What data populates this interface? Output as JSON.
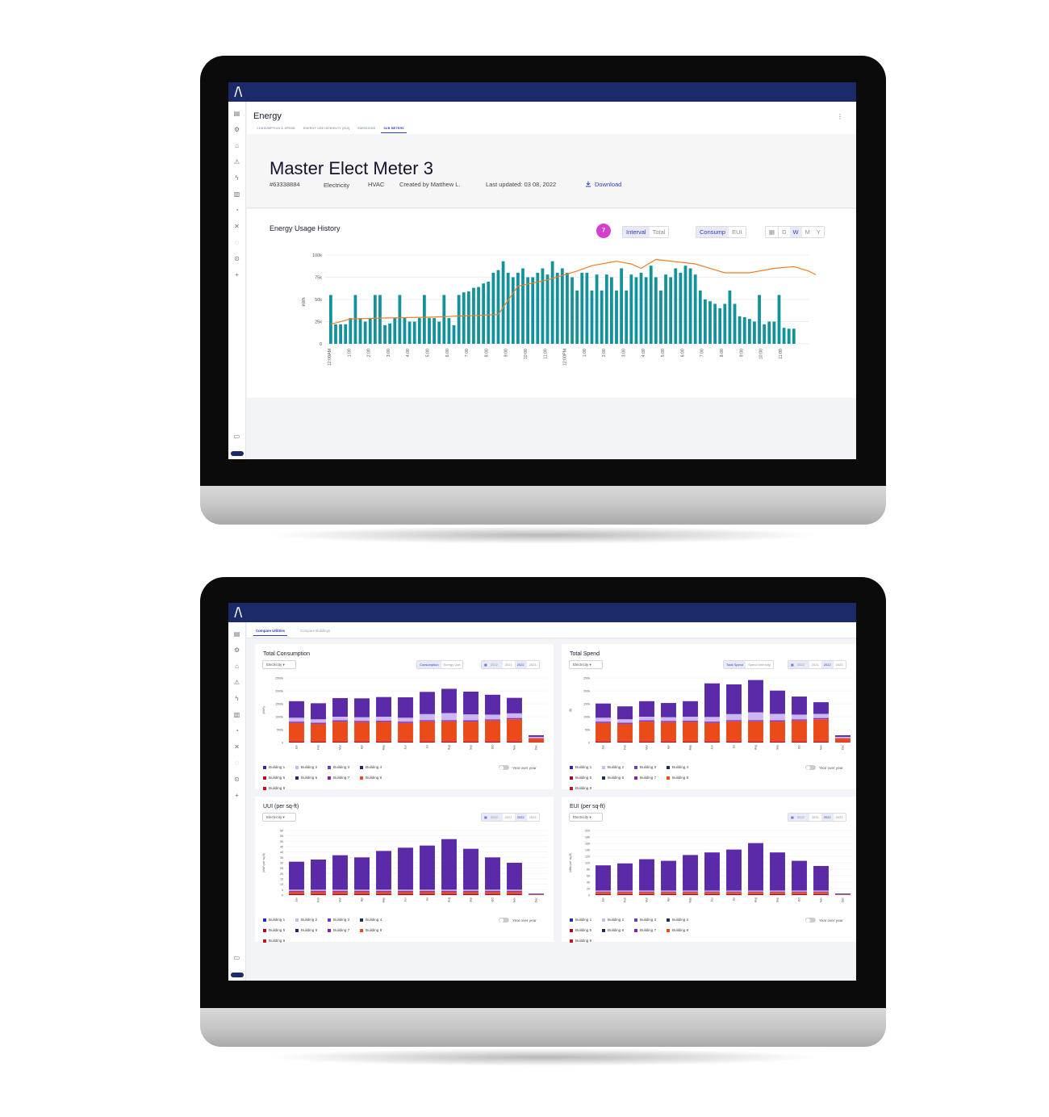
{
  "colors": {
    "topbar": "#1b2a6b",
    "accent": "#2c3cc4",
    "bar_teal": "#14929b",
    "line_orange": "#f07d23",
    "badge_pink": "#d53ecf",
    "purple": "#5a2aa8",
    "lavender": "#cdb7f2",
    "orange_red": "#eb4a19",
    "dark_red": "#b3001f"
  },
  "sidebar_icons": [
    "dashboard-icon",
    "network-icon",
    "building-icon",
    "alert-icon",
    "bolt-icon",
    "report-icon",
    "lock-icon",
    "tools-icon",
    "chat-icon",
    "settings-icon",
    "plus-icon"
  ],
  "screen1": {
    "page_title": "Energy",
    "tabs": [
      "CONSUMPTION & SPEND",
      "ENERGY USE INTENSITY (EUI)",
      "EMISSIONS",
      "SUB METERS"
    ],
    "active_tab": 3,
    "kebab": "⋮",
    "meter": {
      "title": "Master Elect Meter 3",
      "id": "#63338884",
      "type": "Electricity",
      "system": "HVAC",
      "created_by": "Created by Matthew L.",
      "last_updated": "Last updated: 03 08, 2022",
      "download": "Download"
    },
    "usage": {
      "title": "Energy Usage History",
      "badge": "7",
      "mode": {
        "options": [
          "Interval",
          "Total"
        ],
        "selected": "Interval"
      },
      "metric": {
        "options": [
          "Consump",
          "EUI"
        ],
        "selected": "Consump"
      },
      "period": {
        "options": [
          "D",
          "W",
          "M",
          "Y"
        ],
        "selected": "W"
      },
      "calendar_icon": "calendar-icon"
    },
    "chart_data": {
      "type": "bar",
      "ylabel": "kWh",
      "y_ticks": [
        "0",
        "25k",
        "50k",
        "75k",
        "100k"
      ],
      "ylim": [
        0,
        100000
      ],
      "x_tick_labels": [
        "12:00AM",
        "1:00",
        "2:00",
        "3:00",
        "4:00",
        "5:00",
        "6:00",
        "7:00",
        "8:00",
        "9:00",
        "10:00",
        "11:00",
        "12:00PM",
        "1:00",
        "2:00",
        "3:00",
        "4:00",
        "5:00",
        "6:00",
        "7:00",
        "8:00",
        "9:00",
        "10:00",
        "11:00"
      ],
      "grid": true,
      "series": [
        {
          "type": "bar",
          "values": [
            55000,
            22000,
            22000,
            22000,
            29000,
            55000,
            29000,
            25000,
            29000,
            55000,
            55000,
            21000,
            23000,
            29000,
            55000,
            29000,
            25000,
            25000,
            29000,
            55000,
            29000,
            29000,
            25000,
            55000,
            29000,
            21000,
            55000,
            58000,
            59000,
            63000,
            64000,
            68000,
            70000,
            80000,
            83000,
            93000,
            80000,
            75000,
            80000,
            85000,
            75000,
            75000,
            80000,
            85000,
            78000,
            93000,
            80000,
            85000,
            80000,
            75000,
            60000,
            80000,
            80000,
            60000,
            78000,
            60000,
            78000,
            75000,
            60000,
            85000,
            60000,
            78000,
            75000,
            80000,
            75000,
            88000,
            75000,
            60000,
            78000,
            75000,
            85000,
            80000,
            88000,
            85000,
            78000,
            60000,
            50000,
            48000,
            45000,
            40000,
            45000,
            60000,
            45000,
            31000,
            30000,
            28000,
            25000,
            55000,
            22000,
            25000,
            25000,
            55000,
            18000,
            17000,
            17000
          ]
        },
        {
          "type": "line",
          "x": [
            0,
            4,
            10,
            20,
            30,
            34,
            38,
            44,
            50,
            53,
            58,
            61,
            63,
            66,
            74,
            80,
            85,
            90,
            94,
            97,
            103,
            110,
            114,
            117
          ],
          "values": [
            22000,
            28000,
            29000,
            30000,
            32000,
            33000,
            65000,
            72000,
            82000,
            88000,
            93000,
            90000,
            85000,
            95000,
            90000,
            80000,
            80000,
            85000,
            87000,
            82000,
            65000,
            45000,
            35000,
            25000
          ]
        }
      ]
    }
  },
  "screen2": {
    "tabs": [
      "Compare Utilities",
      "Compare Buildings"
    ],
    "active_tab": 0,
    "legend": [
      "Building 1",
      "Building 2",
      "Building 3",
      "Building 4",
      "Building 5",
      "Building 6",
      "Building 7",
      "Building 8",
      "Building 9"
    ],
    "toggle_label": "Year over year",
    "months": [
      "Jan",
      "Feb",
      "Mar",
      "Apr",
      "May",
      "Jun",
      "Jul",
      "Aug",
      "Sep",
      "Oct",
      "Nov",
      "Dec"
    ],
    "cards": [
      {
        "title": "Total Consumption",
        "dropdown": "Electricity ▾",
        "seg": [
          "Consumption",
          "Energy Use"
        ],
        "seg_selected": "Consumption",
        "years": [
          "2022",
          "2021",
          "2022",
          "2023"
        ],
        "ylabel": "(kWh)",
        "chart_data": {
          "type": "bar",
          "stacked": true,
          "y_ticks": [
            "0",
            "500k",
            "1000k",
            "1500k",
            "2000k",
            "2500k"
          ],
          "ylim": [
            0,
            2500000
          ],
          "series": [
            {
              "name": "Building 1",
              "values": [
                640000,
                620000,
                720000,
                730000,
                760000,
                790000,
                860000,
                940000,
                880000,
                770000,
                600000,
                60000
              ]
            },
            {
              "name": "Building 2",
              "values": [
                150000,
                130000,
                140000,
                140000,
                150000,
                150000,
                230000,
                270000,
                230000,
                180000,
                180000,
                50000
              ]
            },
            {
              "name": "Building 3",
              "values": [
                50000,
                50000,
                50000,
                50000,
                50000,
                50000,
                50000,
                50000,
                50000,
                50000,
                50000,
                10000
              ]
            },
            {
              "name": "Building 8",
              "values": [
                720000,
                680000,
                770000,
                750000,
                760000,
                720000,
                780000,
                780000,
                770000,
                810000,
                860000,
                140000
              ]
            },
            {
              "name": "Building 9",
              "values": [
                40000,
                40000,
                40000,
                40000,
                40000,
                40000,
                40000,
                40000,
                40000,
                40000,
                40000,
                20000
              ]
            }
          ]
        }
      },
      {
        "title": "Total Spend",
        "dropdown": "Electricity ▾",
        "seg": [
          "Total Spend",
          "Spend Intensity"
        ],
        "seg_selected": "Total Spend",
        "years": [
          "2022",
          "2021",
          "2022",
          "2023"
        ],
        "ylabel": "($)",
        "chart_data": {
          "type": "bar",
          "stacked": true,
          "y_ticks": [
            "0",
            "50k",
            "100k",
            "150k",
            "200k",
            "250k"
          ],
          "ylim": [
            0,
            250000
          ],
          "series": [
            {
              "name": "Building 1",
              "values": [
                55000,
                50000,
                60000,
                55000,
                60000,
                130000,
                115000,
                125000,
                90000,
                70000,
                45000,
                6000
              ]
            },
            {
              "name": "Building 2",
              "values": [
                15000,
                13000,
                14000,
                14000,
                15000,
                18000,
                23000,
                30000,
                25000,
                18000,
                16000,
                5000
              ]
            },
            {
              "name": "Building 3",
              "values": [
                5000,
                5000,
                5000,
                5000,
                5000,
                5000,
                5000,
                5000,
                5000,
                5000,
                5000,
                1000
              ]
            },
            {
              "name": "Building 8",
              "values": [
                72000,
                68000,
                77000,
                75000,
                76000,
                72000,
                78000,
                78000,
                77000,
                81000,
                86000,
                14000
              ]
            },
            {
              "name": "Building 9",
              "values": [
                4000,
                4000,
                4000,
                4000,
                4000,
                4000,
                4000,
                4000,
                4000,
                4000,
                4000,
                2000
              ]
            }
          ]
        }
      },
      {
        "title": "UUI (per sq-ft)",
        "dropdown": "Electricity ▾",
        "seg": [],
        "seg_selected": "",
        "years": [
          "2022",
          "2021",
          "2022",
          "2023"
        ],
        "ylabel": "(kWh per sq-ft)",
        "chart_data": {
          "type": "bar",
          "stacked": true,
          "y_ticks": [
            "0",
            "5",
            "10",
            "15",
            "20",
            "25",
            "30",
            "35",
            "40",
            "45",
            "50",
            "55",
            "60"
          ],
          "ylim": [
            0,
            60
          ],
          "series": [
            {
              "name": "Building 1",
              "values": [
                26,
                28,
                32,
                30,
                36,
                39,
                41,
                47,
                38,
                30,
                25,
                0.5
              ]
            },
            {
              "name": "Building 2",
              "values": [
                1,
                1,
                1,
                1,
                1,
                1,
                1,
                1,
                1,
                1,
                1,
                0.2
              ]
            },
            {
              "name": "Building 3",
              "values": [
                1,
                1,
                1,
                1,
                1,
                1,
                1,
                1,
                1,
                1,
                1,
                0.2
              ]
            },
            {
              "name": "Building 8",
              "values": [
                2,
                2,
                2,
                2,
                2,
                2,
                2,
                2,
                2,
                2,
                2,
                0.3
              ]
            },
            {
              "name": "Building 9",
              "values": [
                1,
                1,
                1,
                1,
                1,
                1,
                1,
                1,
                1,
                1,
                1,
                0.3
              ]
            }
          ]
        }
      },
      {
        "title": "EUI (per sq-ft)",
        "dropdown": "Electricity ▾",
        "seg": [],
        "seg_selected": "",
        "years": [
          "2022",
          "2021",
          "2022",
          "2023"
        ],
        "ylabel": "(kBtu per sq-ft)",
        "chart_data": {
          "type": "bar",
          "stacked": true,
          "y_ticks": [
            "0",
            "20",
            "40",
            "60",
            "80",
            "100",
            "120",
            "140",
            "160",
            "180",
            "200"
          ],
          "ylim": [
            0,
            200
          ],
          "series": [
            {
              "name": "Building 1",
              "values": [
                78,
                84,
                97,
                92,
                110,
                118,
                127,
                147,
                118,
                92,
                76,
                2
              ]
            },
            {
              "name": "Building 2",
              "values": [
                3,
                3,
                3,
                3,
                3,
                3,
                3,
                3,
                3,
                3,
                3,
                0.5
              ]
            },
            {
              "name": "Building 3",
              "values": [
                2,
                2,
                2,
                2,
                2,
                2,
                2,
                2,
                2,
                2,
                2,
                0.5
              ]
            },
            {
              "name": "Building 8",
              "values": [
                6,
                6,
                6,
                6,
                6,
                6,
                6,
                6,
                6,
                6,
                6,
                1
              ]
            },
            {
              "name": "Building 9",
              "values": [
                3,
                3,
                3,
                3,
                3,
                3,
                3,
                3,
                3,
                3,
                3,
                1
              ]
            }
          ]
        }
      }
    ]
  }
}
